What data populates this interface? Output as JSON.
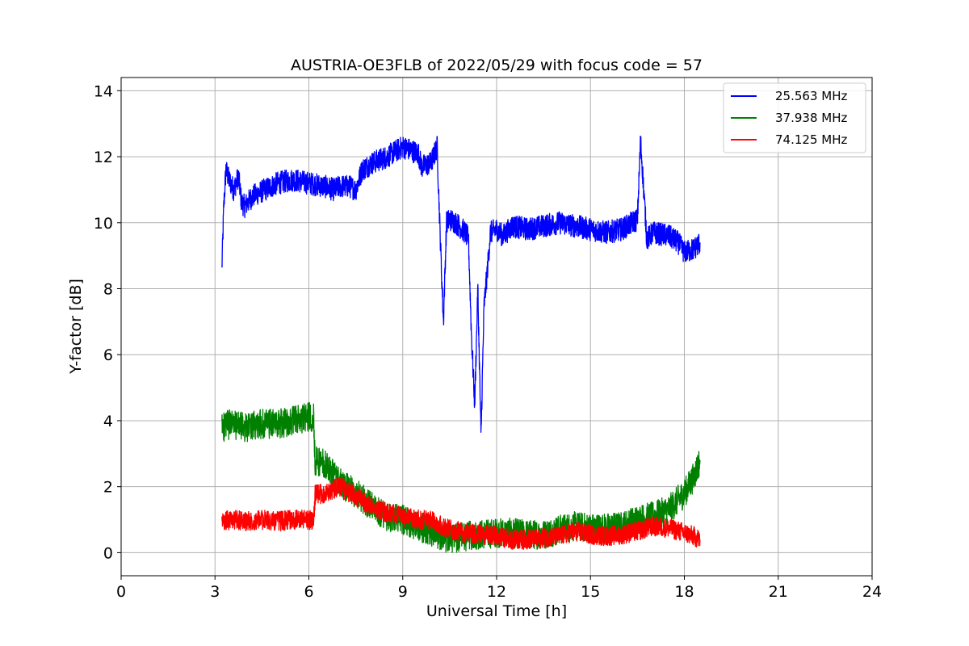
{
  "chart_data": {
    "type": "line",
    "title": "AUSTRIA-OE3FLB of 2022/05/29 with focus code = 57",
    "xlabel": "Universal Time [h]",
    "ylabel": "Y-factor [dB]",
    "xlim": [
      0,
      24
    ],
    "ylim": [
      -0.7,
      14.4
    ],
    "xticks": [
      0,
      3,
      6,
      9,
      12,
      15,
      18,
      21,
      24
    ],
    "yticks": [
      0,
      2,
      4,
      6,
      8,
      10,
      12,
      14
    ],
    "grid": true,
    "legend_position": "top-right",
    "series": [
      {
        "name": "25.563 MHz",
        "color": "#0000ff",
        "noise": 0.35,
        "x": [
          3.22,
          3.28,
          3.35,
          3.45,
          3.6,
          3.75,
          3.85,
          3.95,
          4.2,
          4.6,
          5.0,
          5.5,
          6.0,
          6.5,
          6.8,
          7.0,
          7.3,
          7.5,
          7.7,
          8.0,
          8.5,
          9.0,
          9.5,
          9.6,
          9.9,
          10.1,
          10.2,
          10.3,
          10.4,
          10.5,
          10.7,
          11.0,
          11.1,
          11.2,
          11.3,
          11.4,
          11.5,
          11.6,
          11.7,
          11.8,
          12.0,
          12.2,
          12.5,
          13.0,
          13.5,
          14.0,
          14.5,
          15.0,
          15.5,
          16.0,
          16.5,
          16.6,
          16.8,
          17.0,
          17.5,
          17.8,
          18.0,
          18.3,
          18.5
        ],
        "y": [
          8.6,
          10.5,
          11.6,
          11.3,
          11.0,
          11.4,
          10.6,
          10.5,
          10.8,
          11.0,
          11.2,
          11.3,
          11.2,
          11.1,
          11.0,
          11.1,
          11.1,
          11.0,
          11.6,
          11.8,
          12.0,
          12.3,
          12.1,
          11.7,
          11.8,
          12.3,
          9.5,
          7.0,
          10.0,
          10.1,
          10.0,
          9.7,
          9.5,
          6.5,
          4.5,
          8.0,
          3.5,
          7.5,
          8.5,
          9.7,
          9.8,
          9.6,
          9.9,
          9.8,
          9.9,
          10.0,
          9.9,
          9.8,
          9.7,
          9.8,
          10.1,
          12.5,
          9.5,
          9.7,
          9.6,
          9.4,
          9.1,
          9.2,
          9.4
        ]
      },
      {
        "name": "37.938 MHz",
        "color": "#008000",
        "noise": 0.45,
        "x": [
          3.22,
          3.5,
          4.0,
          4.5,
          5.0,
          5.5,
          6.0,
          6.15,
          6.2,
          6.5,
          7.0,
          7.5,
          8.0,
          8.5,
          9.0,
          9.5,
          10.0,
          10.3,
          10.5,
          11.0,
          11.5,
          12.0,
          12.5,
          13.0,
          13.5,
          14.0,
          14.5,
          15.0,
          15.5,
          16.0,
          16.5,
          17.0,
          17.5,
          18.0,
          18.3,
          18.5
        ],
        "y": [
          3.8,
          3.9,
          3.8,
          3.9,
          3.9,
          4.0,
          4.1,
          4.1,
          2.8,
          2.7,
          2.1,
          1.8,
          1.4,
          1.1,
          1.0,
          0.8,
          0.6,
          0.5,
          0.4,
          0.5,
          0.55,
          0.6,
          0.6,
          0.55,
          0.55,
          0.7,
          0.8,
          0.75,
          0.75,
          0.8,
          1.0,
          1.1,
          1.3,
          1.8,
          2.3,
          2.8
        ]
      },
      {
        "name": "74.125 MHz",
        "color": "#ff0000",
        "noise": 0.3,
        "x": [
          3.22,
          3.5,
          4.0,
          4.5,
          5.0,
          5.5,
          6.0,
          6.15,
          6.2,
          6.5,
          7.0,
          7.5,
          8.0,
          8.5,
          9.0,
          9.5,
          10.0,
          10.3,
          10.5,
          11.0,
          11.5,
          12.0,
          12.5,
          13.0,
          13.5,
          14.0,
          14.5,
          15.0,
          15.5,
          16.0,
          16.5,
          17.0,
          17.5,
          18.0,
          18.3,
          18.5
        ],
        "y": [
          0.95,
          1.0,
          0.95,
          1.0,
          0.95,
          1.0,
          1.0,
          1.0,
          1.75,
          1.8,
          2.0,
          1.7,
          1.4,
          1.2,
          1.1,
          1.0,
          1.0,
          0.75,
          0.7,
          0.6,
          0.55,
          0.5,
          0.4,
          0.4,
          0.45,
          0.5,
          0.65,
          0.55,
          0.5,
          0.55,
          0.65,
          0.8,
          0.75,
          0.6,
          0.5,
          0.4
        ]
      }
    ]
  }
}
